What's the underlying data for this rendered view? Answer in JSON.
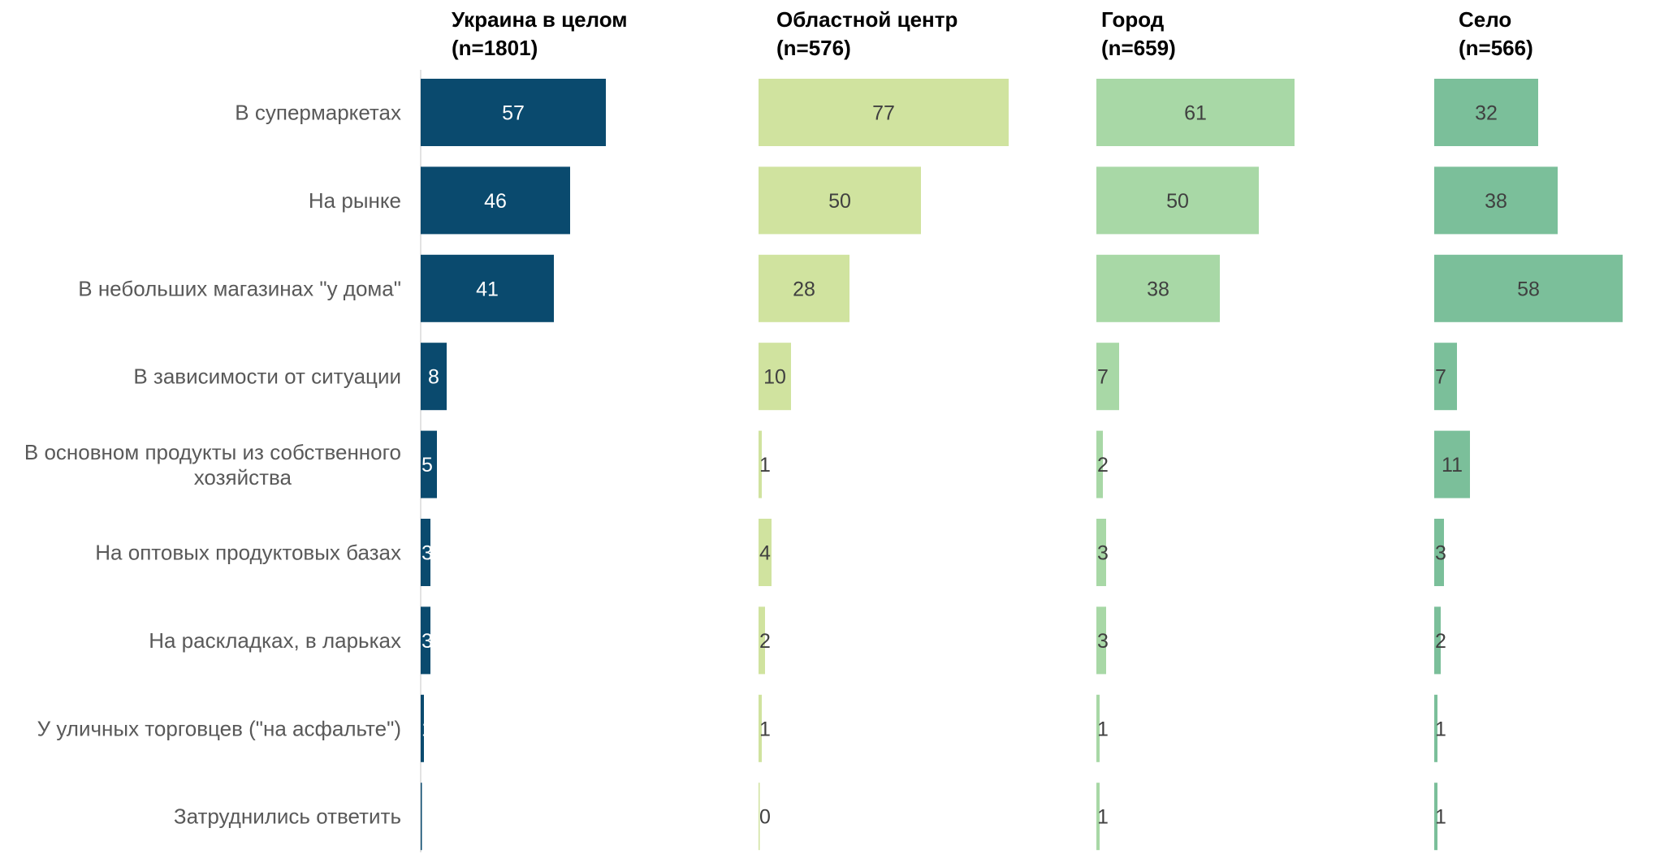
{
  "chart_data": {
    "type": "bar",
    "orientation": "horizontal",
    "categories": [
      "В супермаркетах",
      "На рынке",
      "В небольших магазинах \"у дома\"",
      "В зависимости от ситуации",
      "В основном продукты из собственного хозяйства",
      "На оптовых продуктовых базах",
      "На раскладках, в ларьках",
      "У уличных торговцев (\"на асфальте\")",
      "Затруднились ответить"
    ],
    "series": [
      {
        "title": "Украина в целом",
        "subtitle": "(n=1801)",
        "color": "#0a4a6e",
        "label_color": "#ffffff",
        "values": [
          57,
          46,
          41,
          8,
          5,
          3,
          3,
          1,
          0
        ]
      },
      {
        "title": "Областной центр",
        "subtitle": "(n=576)",
        "color": "#d0e39f",
        "label_color": "#404040",
        "values": [
          77,
          50,
          28,
          10,
          1,
          4,
          2,
          1,
          0
        ]
      },
      {
        "title": "Город",
        "subtitle": "(n=659)",
        "color": "#a8d8a6",
        "label_color": "#404040",
        "values": [
          61,
          50,
          38,
          7,
          2,
          3,
          3,
          1,
          1
        ]
      },
      {
        "title": "Село",
        "subtitle": "(n=566)",
        "color": "#7bbf9a",
        "label_color": "#404040",
        "values": [
          32,
          38,
          58,
          7,
          11,
          3,
          2,
          1,
          1
        ]
      }
    ],
    "xlim": [
      0,
      77
    ],
    "grid": false,
    "legend": "none"
  }
}
